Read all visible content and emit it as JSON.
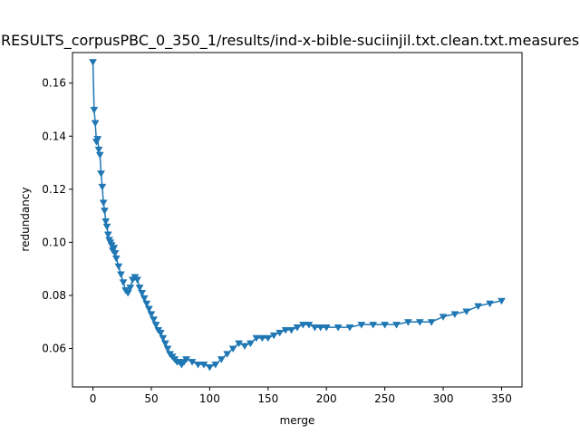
{
  "chart_data": {
    "type": "line",
    "title": "RESULTS_corpusPBC_0_350_1/results/ind-x-bible-suciinjil.txt.clean.txt.measures",
    "xlabel": "merge",
    "ylabel": "redundancy",
    "xlim": [
      -17.5,
      367.5
    ],
    "ylim": [
      0.0455,
      0.1715
    ],
    "xticks": [
      0,
      50,
      100,
      150,
      200,
      250,
      300,
      350
    ],
    "yticks": [
      0.06,
      0.08,
      0.1,
      0.12,
      0.14,
      0.16
    ],
    "ytick_labels": [
      "0.06",
      "0.08",
      "0.10",
      "0.12",
      "0.14",
      "0.16"
    ],
    "marker": "triangle-down",
    "color": "#1f77b4",
    "grid": false,
    "legend": "none",
    "series": [
      {
        "x": [
          0,
          1,
          2,
          3,
          4,
          5,
          6,
          7,
          8,
          9,
          10,
          11,
          12,
          13,
          14,
          15,
          16,
          17,
          18,
          19,
          20,
          22,
          24,
          26,
          28,
          30,
          32,
          34,
          36,
          38,
          40,
          42,
          44,
          46,
          48,
          50,
          52,
          54,
          56,
          58,
          60,
          62,
          64,
          66,
          68,
          70,
          72,
          74,
          76,
          78,
          80,
          85,
          90,
          95,
          100,
          105,
          110,
          115,
          120,
          125,
          130,
          135,
          140,
          145,
          150,
          155,
          160,
          165,
          170,
          175,
          180,
          185,
          190,
          195,
          200,
          210,
          220,
          230,
          240,
          250,
          260,
          270,
          280,
          290,
          300,
          310,
          320,
          330,
          340,
          350
        ],
        "y": [
          0.168,
          0.15,
          0.145,
          0.138,
          0.139,
          0.135,
          0.133,
          0.126,
          0.121,
          0.115,
          0.112,
          0.108,
          0.106,
          0.103,
          0.101,
          0.1,
          0.099,
          0.097,
          0.098,
          0.096,
          0.094,
          0.091,
          0.088,
          0.085,
          0.082,
          0.081,
          0.083,
          0.086,
          0.087,
          0.086,
          0.083,
          0.081,
          0.079,
          0.077,
          0.075,
          0.073,
          0.071,
          0.069,
          0.067,
          0.066,
          0.064,
          0.062,
          0.06,
          0.058,
          0.057,
          0.056,
          0.055,
          0.055,
          0.054,
          0.055,
          0.056,
          0.055,
          0.054,
          0.054,
          0.053,
          0.054,
          0.056,
          0.058,
          0.06,
          0.062,
          0.061,
          0.062,
          0.064,
          0.064,
          0.064,
          0.065,
          0.066,
          0.067,
          0.067,
          0.068,
          0.069,
          0.069,
          0.068,
          0.068,
          0.068,
          0.068,
          0.068,
          0.069,
          0.069,
          0.069,
          0.069,
          0.07,
          0.07,
          0.07,
          0.072,
          0.073,
          0.074,
          0.076,
          0.077,
          0.078
        ]
      }
    ]
  }
}
